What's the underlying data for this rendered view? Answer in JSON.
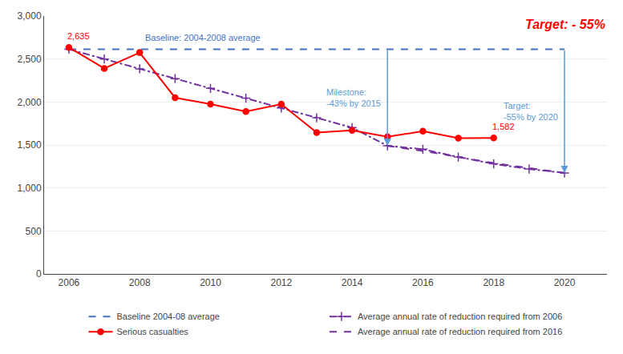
{
  "chart_data": {
    "type": "line",
    "xlim": [
      2005.3,
      2021.2
    ],
    "xticks": [
      2006,
      2008,
      2010,
      2012,
      2014,
      2016,
      2018,
      2020
    ],
    "ylim": [
      0,
      3000
    ],
    "yticks": [
      0,
      500,
      {
        "value": 1000,
        "label": "1,000"
      },
      {
        "value": 1500,
        "label": "1,500"
      },
      {
        "value": 2000,
        "label": "2,000"
      },
      {
        "value": 2500,
        "label": "2,500"
      },
      {
        "value": 3000,
        "label": "3,000"
      }
    ],
    "grid": "y",
    "legend": "bottom",
    "series": [
      {
        "name": "Baseline 2004-08 average",
        "color": "#4472C4",
        "line_style": "dashed",
        "x": [
          2006,
          2020
        ],
        "values": [
          2614,
          2614
        ]
      },
      {
        "name": "Average annual rate of reduction required from 2006",
        "color": "#7030A0",
        "line_style": "dashdot",
        "marker": "plus",
        "x": [
          2006,
          2007,
          2008,
          2009,
          2010,
          2011,
          2012,
          2013,
          2014,
          2015,
          2016,
          2017,
          2018,
          2019,
          2020
        ],
        "values": [
          2614,
          2500,
          2386,
          2272,
          2158,
          2044,
          1930,
          1816,
          1702,
          1490,
          1450,
          1360,
          1280,
          1220,
          1175
        ]
      },
      {
        "name": "Serious casualties",
        "color": "#FF0000",
        "line_style": "solid",
        "marker": "circle",
        "x": [
          2006,
          2007,
          2008,
          2009,
          2010,
          2011,
          2012,
          2013,
          2014,
          2015,
          2016,
          2017,
          2018
        ],
        "values": [
          2635,
          2390,
          2575,
          2050,
          1975,
          1890,
          1975,
          1645,
          1670,
          1595,
          1660,
          1580,
          1582
        ]
      },
      {
        "name": "Average annual rate of reduction required from 2016",
        "color": "#7030A0",
        "line_style": "dashed",
        "x": [
          2015,
          2016,
          2017,
          2018,
          2019,
          2020
        ],
        "values": [
          1490,
          1430,
          1360,
          1290,
          1232,
          1175
        ]
      }
    ],
    "annotations": [
      {
        "text": "2,635",
        "x": 2006,
        "y": 2635,
        "color": "#FF0000"
      },
      {
        "text": "1,582",
        "x": 2018,
        "y": 1582,
        "color": "#FF0000"
      },
      {
        "text": "Baseline: 2004-2008 average",
        "x": 2008.2,
        "y": 2614,
        "color": "#4472C4"
      },
      {
        "text": "Target: - 55%",
        "color": "#FF0000"
      }
    ],
    "arrows": [
      {
        "text": "Milestone:\n-43% by 2015",
        "x": 2015,
        "from": 2614,
        "to": 1490,
        "color": "#5B9BD5"
      },
      {
        "text": "Target:\n-55% by 2020",
        "x": 2020,
        "from": 2614,
        "to": 1175,
        "color": "#5B9BD5"
      }
    ]
  }
}
